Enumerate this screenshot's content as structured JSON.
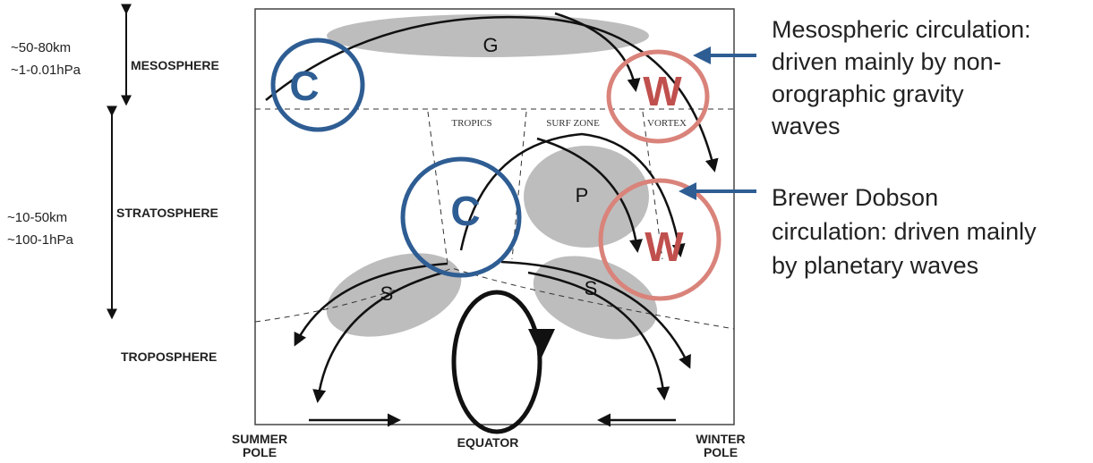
{
  "left_labels": [
    {
      "height": "~50-80km",
      "pressure": "~1-0.01hPa"
    },
    {
      "height": "~10-50km",
      "pressure": "~100-1hPa"
    }
  ],
  "layers": [
    "MESOSPHERE",
    "STRATOSPHERE",
    "TROPOSPHERE"
  ],
  "bottom_labels": [
    [
      "SUMMER",
      "POLE"
    ],
    [
      "EQUATOR"
    ],
    [
      "WINTER",
      "POLE"
    ]
  ],
  "zones": [
    "TROPICS",
    "SURF ZONE",
    "VORTEX"
  ],
  "regions": [
    "G",
    "P",
    "S",
    "S"
  ],
  "cells": [
    "C",
    "W",
    "C",
    "W"
  ],
  "annotations": [
    {
      "lines": [
        "Mesospheric circulation:",
        "driven mainly by non-",
        "orographic gravity",
        "waves"
      ]
    },
    {
      "lines": [
        "Brewer Dobson",
        "circulation: driven mainly",
        "by planetary waves"
      ]
    }
  ]
}
